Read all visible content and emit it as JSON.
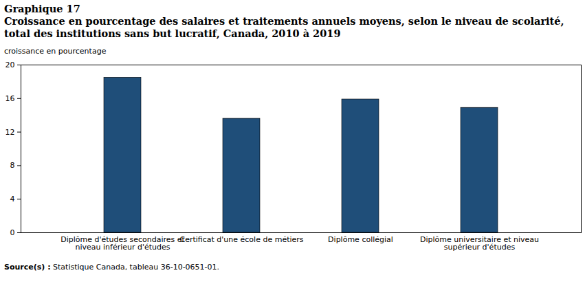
{
  "chart_data": {
    "type": "bar",
    "title": "Graphique 17",
    "subtitle": "Croissance en pourcentage des salaires et traitements annuels moyens, selon le niveau de scolarité, total des institutions sans but lucratif, Canada, 2010 à 2019",
    "ylabel": "croissance en pourcentage",
    "source_label": "Source(s) :",
    "source": "Statistique Canada, tableau 36-10-0651-01.",
    "categories": [
      "Diplôme d'études secondaires et niveau inférieur d'études",
      "Certificat d'une école de métiers",
      "Diplôme collégial",
      "Diplôme universitaire et niveau supérieur d'études"
    ],
    "values": [
      18.5,
      13.6,
      15.9,
      14.9
    ],
    "color": "#1f4e79",
    "ylim": [
      0,
      20
    ],
    "yticks": [
      0,
      4,
      8,
      12,
      16,
      20
    ],
    "grid": false
  }
}
